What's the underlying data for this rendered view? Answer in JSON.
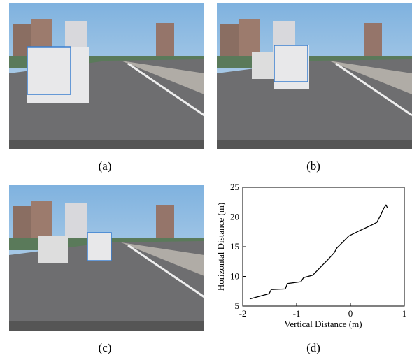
{
  "panels": [
    {
      "caption": "(a)"
    },
    {
      "caption": "(b)"
    },
    {
      "caption": "(c)"
    },
    {
      "caption": "(d)"
    }
  ],
  "chart_data": {
    "type": "line",
    "xlabel": "Vertical Distance (m)",
    "ylabel": "Horizontal Distance (m)",
    "xlim": [
      -2,
      1
    ],
    "xticks": [
      -2,
      -1,
      0,
      1
    ],
    "ylim": [
      5,
      25
    ],
    "yticks": [
      5,
      10,
      15,
      20,
      25
    ],
    "series": [
      {
        "color": "#000000",
        "x": [
          -1.87,
          -1.51,
          -1.47,
          -1.21,
          -1.17,
          -0.92,
          -0.87,
          -0.7,
          -0.53,
          -0.42,
          -0.3,
          -0.25,
          -0.15,
          -0.03,
          0.17,
          0.36,
          0.49,
          0.56,
          0.62,
          0.66,
          0.69
        ],
        "values": [
          6.2,
          7.1,
          7.8,
          7.9,
          8.8,
          9.1,
          9.8,
          10.2,
          11.8,
          12.8,
          14.0,
          14.8,
          15.7,
          16.8,
          17.7,
          18.5,
          19.1,
          20.3,
          21.5,
          22.0,
          21.5
        ]
      }
    ]
  }
}
